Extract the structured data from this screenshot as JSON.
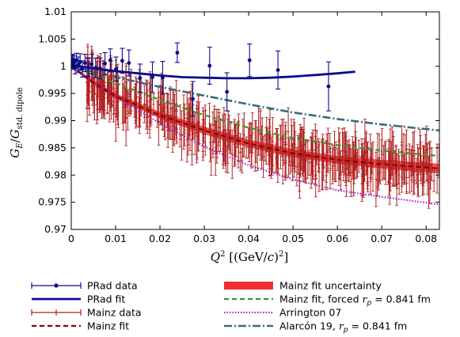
{
  "chart_data": {
    "type": "scatter",
    "xlabel": "Q² [(GeV/c)²]",
    "ylabel": "G_E/G_std. dipole",
    "xlim": [
      0,
      0.083
    ],
    "ylim": [
      0.97,
      1.01
    ],
    "xticks": [
      0,
      0.01,
      0.02,
      0.03,
      0.04,
      0.05,
      0.06,
      0.07,
      0.08
    ],
    "xtick_labels": [
      "0",
      "0.01",
      "0.02",
      "0.03",
      "0.04",
      "0.05",
      "0.06",
      "0.07",
      "0.08"
    ],
    "yticks": [
      0.97,
      0.975,
      0.98,
      0.985,
      0.99,
      0.995,
      1.0,
      1.005,
      1.01
    ],
    "ytick_labels": [
      "0.97",
      "0.975",
      "0.98",
      "0.985",
      "0.99",
      "0.995",
      "1",
      "1.005",
      "1.01"
    ],
    "grid": false,
    "legend_position": "below",
    "colors": {
      "prad": "#0b0b8a",
      "mainz_data": "#b02020",
      "mainz_fit": "#8b0000",
      "mainz_band": "#f03030",
      "forced": "#2e9a2e",
      "arrington": "#a020d0",
      "alarcon": "#3a6a7a"
    },
    "series": [
      {
        "name": "PRad data",
        "kind": "points_with_errors",
        "x": [
          0.00021,
          0.00035,
          0.0005,
          0.0007,
          0.0009,
          0.0012,
          0.0016,
          0.002,
          0.0025,
          0.0031,
          0.0038,
          0.0046,
          0.0055,
          0.0065,
          0.0076,
          0.0088,
          0.0101,
          0.0115,
          0.013,
          0.0155,
          0.0183,
          0.0206,
          0.0239,
          0.0274,
          0.0312,
          0.0351,
          0.0402,
          0.0466,
          0.058
        ],
        "y": [
          1.0008,
          1.0012,
          1.0004,
          1.0009,
          0.9998,
          1.0011,
          1.0003,
          1.0008,
          0.9995,
          1.0006,
          0.9998,
          1.0004,
          0.9997,
          0.9996,
          1.0005,
          1.0011,
          0.9995,
          1.001,
          1.0006,
          0.9978,
          0.998,
          0.9979,
          1.0025,
          0.994,
          1.0001,
          0.9953,
          1.0011,
          0.9993,
          0.9963
        ],
        "err": [
          0.0012,
          0.001,
          0.001,
          0.001,
          0.0012,
          0.0013,
          0.0014,
          0.0015,
          0.0015,
          0.0016,
          0.0017,
          0.0018,
          0.0018,
          0.0019,
          0.002,
          0.0021,
          0.0022,
          0.0023,
          0.0024,
          0.0026,
          0.0028,
          0.003,
          0.0018,
          0.0032,
          0.0034,
          0.0035,
          0.003,
          0.0035,
          0.0045
        ]
      },
      {
        "name": "PRad fit",
        "kind": "line",
        "x": [
          0,
          0.005,
          0.01,
          0.015,
          0.02,
          0.025,
          0.03,
          0.035,
          0.04,
          0.045,
          0.05,
          0.055,
          0.06,
          0.064
        ],
        "y": [
          1.0002,
          0.9996,
          0.9991,
          0.9987,
          0.9983,
          0.998,
          0.9979,
          0.9978,
          0.9978,
          0.9979,
          0.9981,
          0.9984,
          0.9987,
          0.999
        ]
      },
      {
        "name": "Mainz data",
        "kind": "points_with_errors",
        "cloud_trend_x": [
          0.003,
          0.01,
          0.02,
          0.03,
          0.04,
          0.05,
          0.06,
          0.07,
          0.083
        ],
        "cloud_trend_y": [
          0.9975,
          0.9947,
          0.9913,
          0.9882,
          0.9858,
          0.984,
          0.9828,
          0.982,
          0.9812
        ],
        "cloud_spread": 0.0045,
        "cloud_error_typical": 0.0035,
        "cloud_count": 480
      },
      {
        "name": "Mainz fit",
        "kind": "dashed_line",
        "x": [
          0,
          0.005,
          0.01,
          0.02,
          0.03,
          0.04,
          0.05,
          0.06,
          0.07,
          0.083
        ],
        "y": [
          1.0,
          0.997,
          0.9945,
          0.991,
          0.9882,
          0.9858,
          0.984,
          0.9828,
          0.982,
          0.9812
        ]
      },
      {
        "name": "Mainz fit uncertainty",
        "kind": "band",
        "x": [
          0,
          0.005,
          0.01,
          0.02,
          0.03,
          0.04,
          0.05,
          0.06,
          0.07,
          0.083
        ],
        "lo": [
          0.9998,
          0.9966,
          0.994,
          0.9904,
          0.9875,
          0.9851,
          0.9833,
          0.9821,
          0.9812,
          0.9803
        ],
        "hi": [
          1.0002,
          0.9974,
          0.995,
          0.9916,
          0.9889,
          0.9865,
          0.9847,
          0.9835,
          0.9828,
          0.9821
        ]
      },
      {
        "name": "Mainz fit, forced r_p = 0.841 fm",
        "kind": "dashed_line",
        "x": [
          0,
          0.01,
          0.02,
          0.03,
          0.04,
          0.05,
          0.06,
          0.07,
          0.083
        ],
        "y": [
          1.0,
          0.9969,
          0.9938,
          0.991,
          0.9887,
          0.9868,
          0.9855,
          0.9845,
          0.9835
        ]
      },
      {
        "name": "Arrington 07",
        "kind": "dotted_line",
        "x": [
          0,
          0.01,
          0.02,
          0.03,
          0.04,
          0.05,
          0.06,
          0.07,
          0.083
        ],
        "y": [
          1.0,
          0.9945,
          0.9895,
          0.9852,
          0.9818,
          0.9792,
          0.9772,
          0.976,
          0.9746
        ]
      },
      {
        "name": "Alarcón 19, r_p = 0.841 fm",
        "kind": "dashdot_line",
        "x": [
          0,
          0.01,
          0.02,
          0.03,
          0.04,
          0.05,
          0.06,
          0.07,
          0.083
        ],
        "y": [
          1.0,
          0.998,
          0.9962,
          0.9946,
          0.993,
          0.9915,
          0.9903,
          0.9893,
          0.9882
        ]
      }
    ],
    "legend": [
      {
        "label": "PRad data",
        "series": 0
      },
      {
        "label": "PRad fit",
        "series": 1
      },
      {
        "label": "Mainz data",
        "series": 2
      },
      {
        "label": "Mainz fit",
        "series": 3
      },
      {
        "label": "Mainz fit uncertainty",
        "series": 4
      },
      {
        "label": "Mainz fit, forced r_p = 0.841 fm",
        "series": 5
      },
      {
        "label": "Arrington 07",
        "series": 6
      },
      {
        "label": "Alarcón 19, r_p = 0.841 fm",
        "series": 7
      }
    ]
  }
}
